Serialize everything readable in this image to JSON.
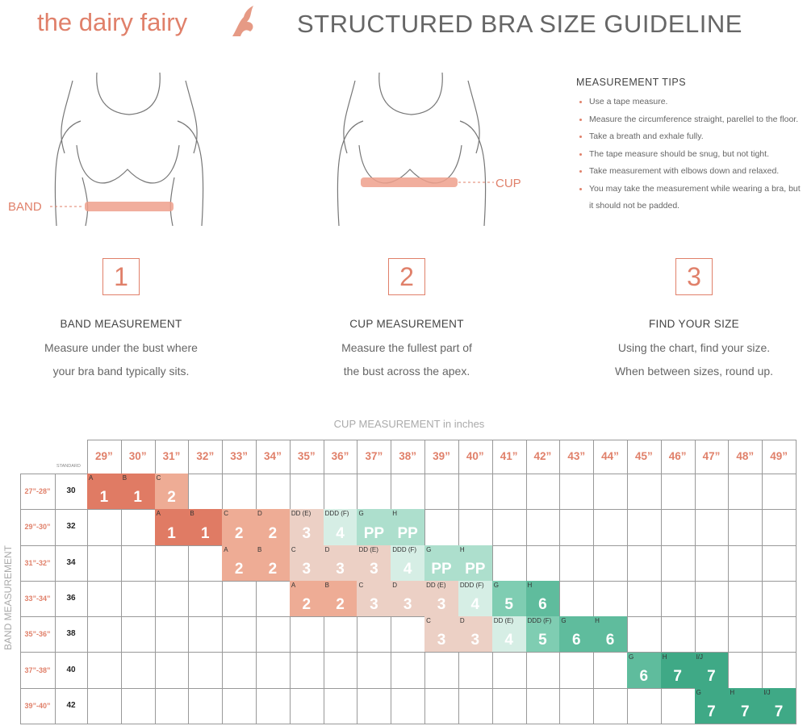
{
  "header": {
    "brand": "the dairy fairy",
    "title": "STRUCTURED BRA SIZE GUIDELINE"
  },
  "figures": {
    "band_label": "BAND",
    "cup_label": "CUP"
  },
  "tips": {
    "title": "MEASUREMENT TIPS",
    "items": [
      "Use a tape measure.",
      "Measure the circumference straight, parellel to the floor.",
      "Take a breath and exhale fully.",
      "The tape measure should be snug, but not tight.",
      "Take measurement with elbows down and relaxed.",
      "You may take the measurement while wearing a bra, but it should not be padded."
    ]
  },
  "steps": [
    {
      "number": "1",
      "title": "BAND MEASUREMENT",
      "lines": [
        "Measure under the bust where",
        "your bra band typically sits."
      ]
    },
    {
      "number": "2",
      "title": "CUP MEASUREMENT",
      "lines": [
        "Measure the fullest part of",
        "the bust across the apex."
      ]
    },
    {
      "number": "3",
      "title": "FIND YOUR SIZE",
      "lines": [
        "Using the chart, find your size.",
        "When between sizes, round up."
      ]
    }
  ],
  "table": {
    "title": "CUP MEASUREMENT in inches",
    "row_axis": "BAND MEASUREMENT",
    "standard_header": "STANDARD",
    "columns": [
      "29”",
      "30”",
      "31”",
      "32”",
      "33”",
      "34”",
      "35”",
      "36”",
      "37”",
      "38”",
      "39”",
      "40”",
      "41”",
      "42”",
      "43”",
      "44”",
      "45”",
      "46”",
      "47”",
      "48”",
      "49”"
    ],
    "rows": [
      {
        "band": "27”-28”",
        "standard": "30",
        "cells": [
          {
            "cup": "A",
            "size": "1",
            "color": "#e07b64"
          },
          {
            "cup": "B",
            "size": "1",
            "color": "#e07b64"
          },
          {
            "cup": "C",
            "size": "2",
            "color": "#eeac95"
          },
          null,
          null,
          null,
          null,
          null,
          null,
          null,
          null,
          null,
          null,
          null,
          null,
          null,
          null,
          null,
          null,
          null,
          null
        ]
      },
      {
        "band": "29”-30”",
        "standard": "32",
        "cells": [
          null,
          null,
          {
            "cup": "A",
            "size": "1",
            "color": "#e07b64"
          },
          {
            "cup": "B",
            "size": "1",
            "color": "#e07b64"
          },
          {
            "cup": "C",
            "size": "2",
            "color": "#eeac95"
          },
          {
            "cup": "D",
            "size": "2",
            "color": "#eeac95"
          },
          {
            "cup": "DD (E)",
            "size": "3",
            "color": "#ecd0c5"
          },
          {
            "cup": "DDD (F)",
            "size": "4",
            "color": "#d6eee5"
          },
          {
            "cup": "G",
            "size": "PP",
            "color": "#addfcd"
          },
          {
            "cup": "H",
            "size": "PP",
            "color": "#addfcd"
          },
          null,
          null,
          null,
          null,
          null,
          null,
          null,
          null,
          null,
          null,
          null
        ]
      },
      {
        "band": "31”-32”",
        "standard": "34",
        "cells": [
          null,
          null,
          null,
          null,
          {
            "cup": "A",
            "size": "2",
            "color": "#eeac95"
          },
          {
            "cup": "B",
            "size": "2",
            "color": "#eeac95"
          },
          {
            "cup": "C",
            "size": "3",
            "color": "#ecd0c5"
          },
          {
            "cup": "D",
            "size": "3",
            "color": "#ecd0c5"
          },
          {
            "cup": "DD (E)",
            "size": "3",
            "color": "#ecd0c5"
          },
          {
            "cup": "DDD (F)",
            "size": "4",
            "color": "#d6eee5"
          },
          {
            "cup": "G",
            "size": "PP",
            "color": "#addfcd"
          },
          {
            "cup": "H",
            "size": "PP",
            "color": "#addfcd"
          },
          null,
          null,
          null,
          null,
          null,
          null,
          null,
          null,
          null
        ]
      },
      {
        "band": "33”-34”",
        "standard": "36",
        "cells": [
          null,
          null,
          null,
          null,
          null,
          null,
          {
            "cup": "A",
            "size": "2",
            "color": "#eeac95"
          },
          {
            "cup": "B",
            "size": "2",
            "color": "#eeac95"
          },
          {
            "cup": "C",
            "size": "3",
            "color": "#ecd0c5"
          },
          {
            "cup": "D",
            "size": "3",
            "color": "#ecd0c5"
          },
          {
            "cup": "DD (E)",
            "size": "3",
            "color": "#ecd0c5"
          },
          {
            "cup": "DDD (F)",
            "size": "4",
            "color": "#d6eee5"
          },
          {
            "cup": "G",
            "size": "5",
            "color": "#7fcdb2"
          },
          {
            "cup": "H",
            "size": "6",
            "color": "#5fbc9d"
          },
          null,
          null,
          null,
          null,
          null,
          null,
          null
        ]
      },
      {
        "band": "35”-36”",
        "standard": "38",
        "cells": [
          null,
          null,
          null,
          null,
          null,
          null,
          null,
          null,
          null,
          null,
          {
            "cup": "C",
            "size": "3",
            "color": "#ecd0c5"
          },
          {
            "cup": "D",
            "size": "3",
            "color": "#ecd0c5"
          },
          {
            "cup": "DD (E)",
            "size": "4",
            "color": "#d6eee5"
          },
          {
            "cup": "DDD (F)",
            "size": "5",
            "color": "#7fcdb2"
          },
          {
            "cup": "G",
            "size": "6",
            "color": "#5fbc9d"
          },
          {
            "cup": "H",
            "size": "6",
            "color": "#5fbc9d"
          },
          null,
          null,
          null,
          null,
          null
        ]
      },
      {
        "band": "37”-38”",
        "standard": "40",
        "cells": [
          null,
          null,
          null,
          null,
          null,
          null,
          null,
          null,
          null,
          null,
          null,
          null,
          null,
          null,
          null,
          null,
          {
            "cup": "G",
            "size": "6",
            "color": "#5fbc9d"
          },
          {
            "cup": "H",
            "size": "7",
            "color": "#3fa986"
          },
          {
            "cup": "I/J",
            "size": "7",
            "color": "#3fa986"
          },
          null,
          null
        ]
      },
      {
        "band": "39”-40”",
        "standard": "42",
        "cells": [
          null,
          null,
          null,
          null,
          null,
          null,
          null,
          null,
          null,
          null,
          null,
          null,
          null,
          null,
          null,
          null,
          null,
          null,
          {
            "cup": "G",
            "size": "7",
            "color": "#3fa986"
          },
          {
            "cup": "H",
            "size": "7",
            "color": "#3fa986"
          },
          {
            "cup": "I/J",
            "size": "7",
            "color": "#3fa986"
          }
        ]
      }
    ]
  }
}
